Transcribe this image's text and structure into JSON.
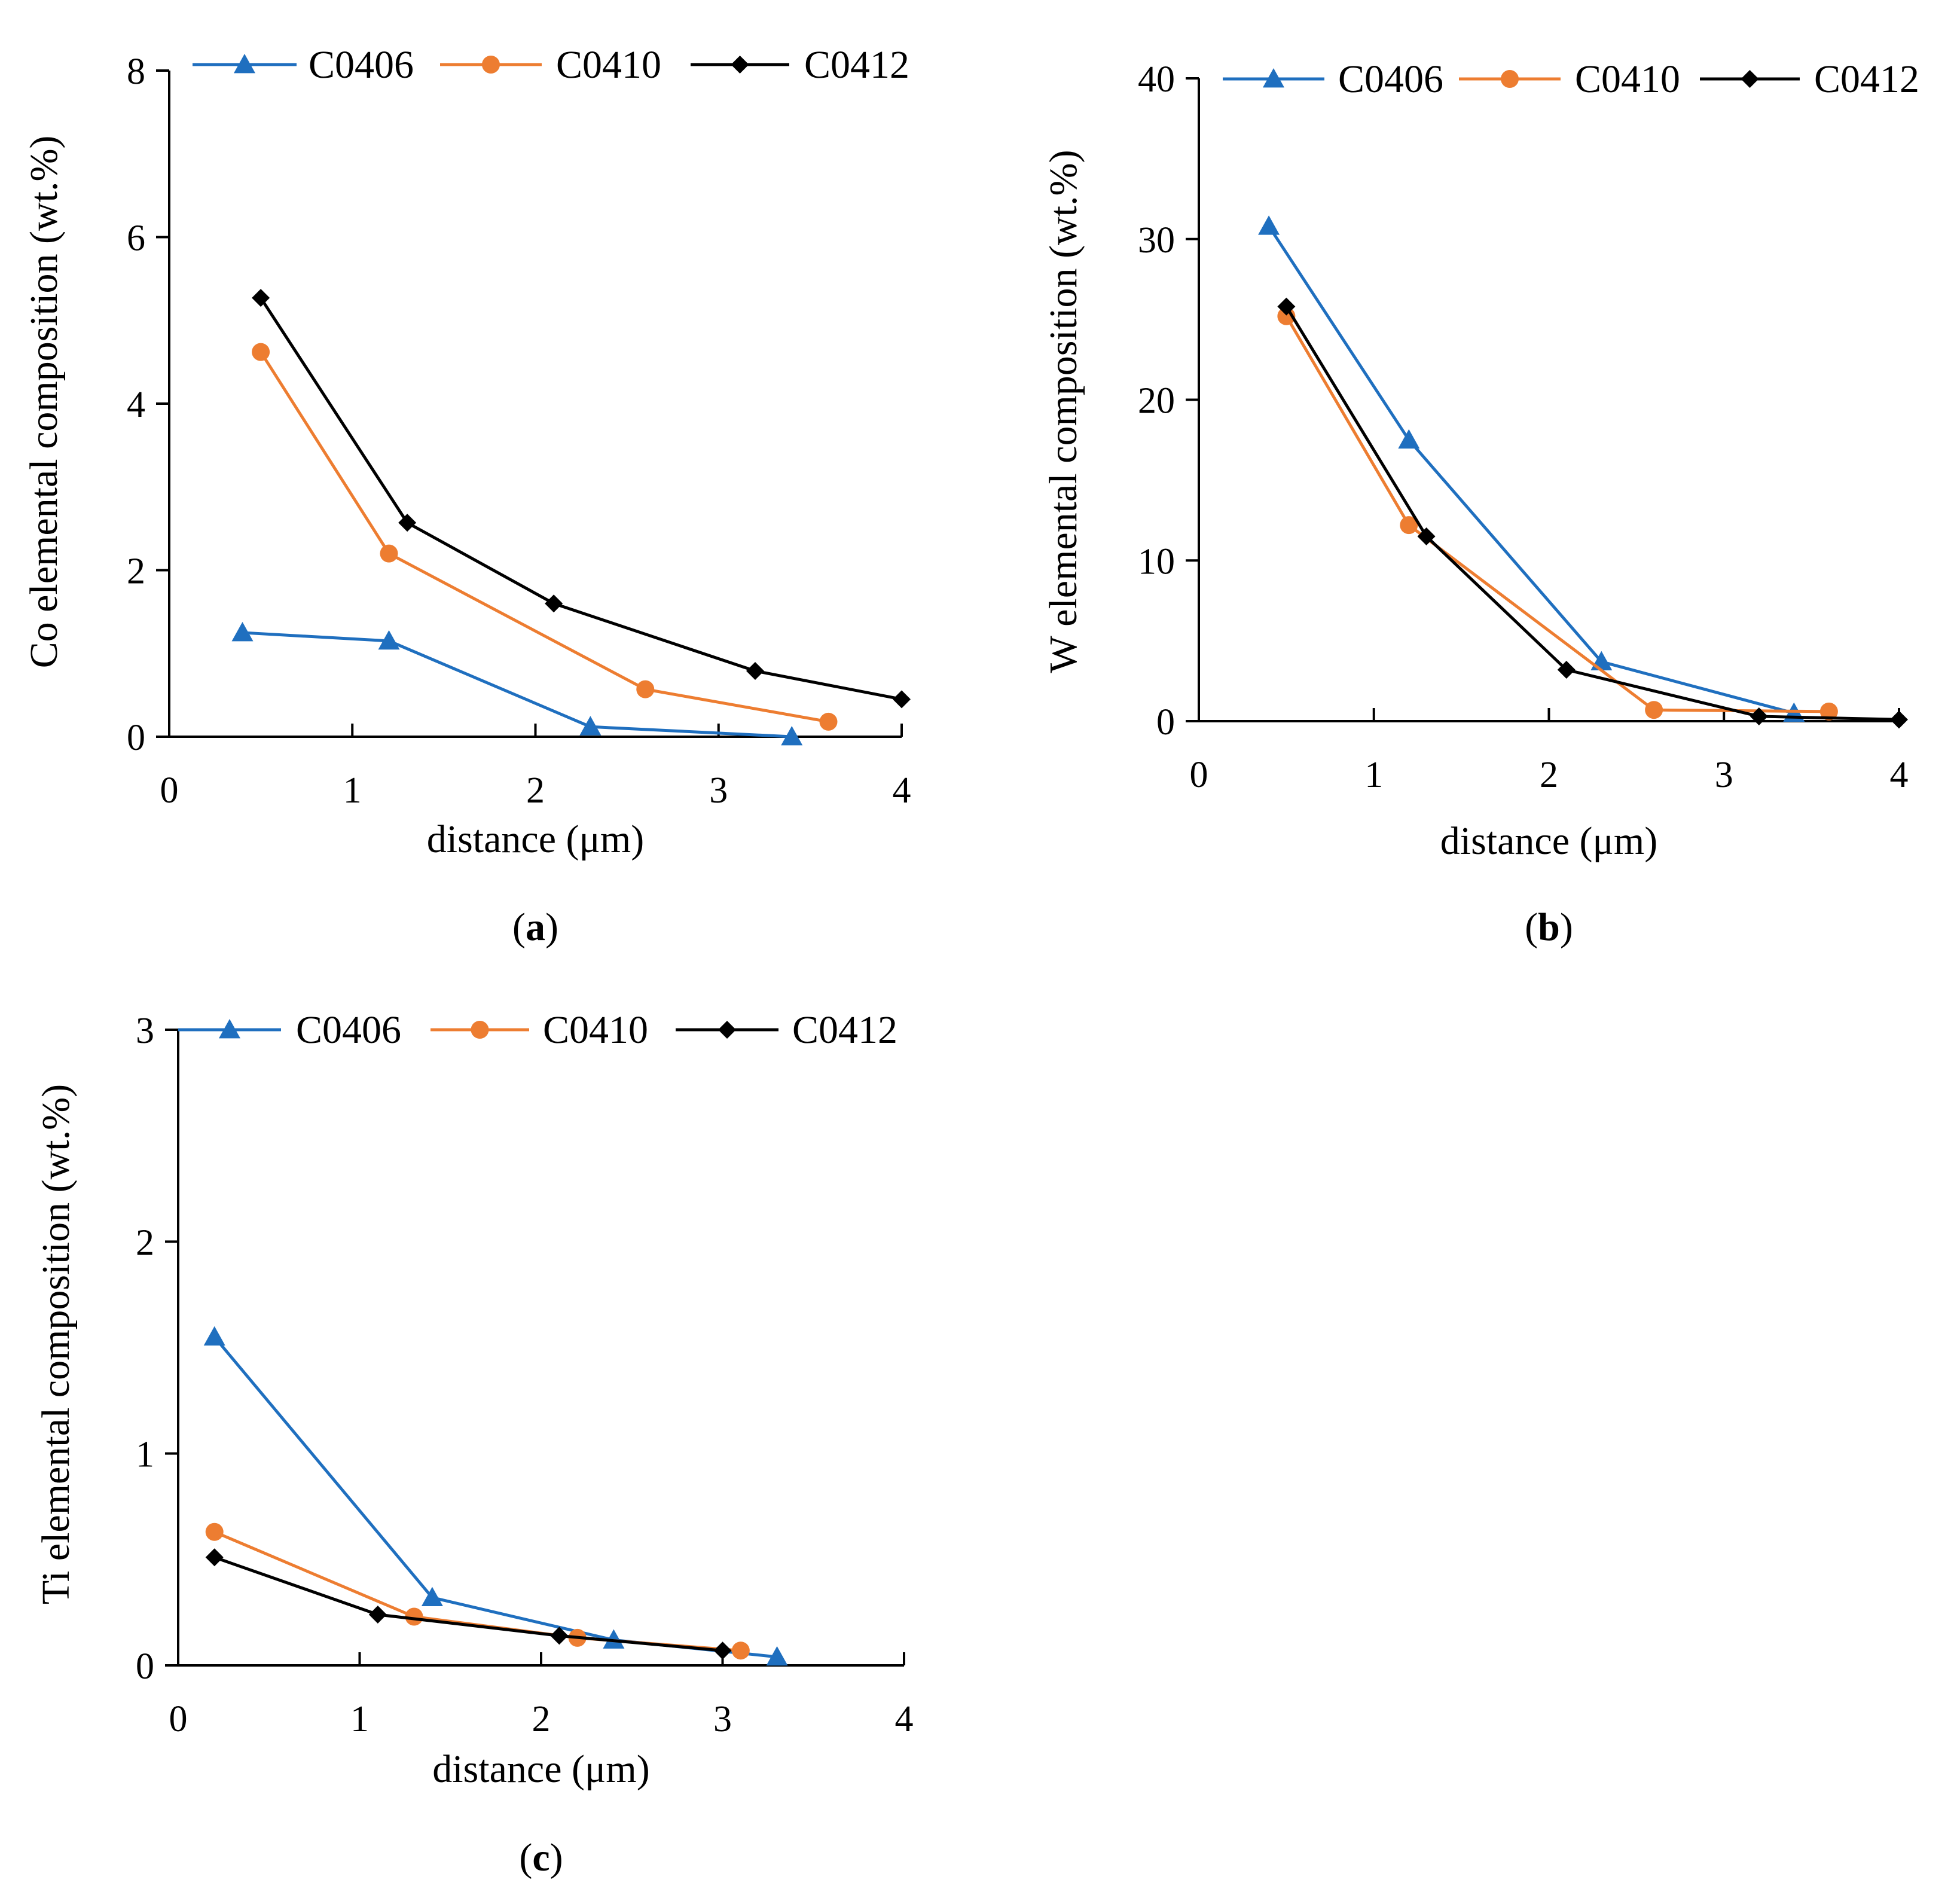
{
  "colors": {
    "C0406": "#1f6fbf",
    "C0410": "#ed7d31",
    "C0412": "#000000"
  },
  "markers": {
    "C0406": "triangle",
    "C0410": "circle",
    "C0412": "diamond"
  },
  "chart_data": [
    {
      "id": "a",
      "type": "line",
      "panel_label": "a",
      "xlabel": "distance (μm)",
      "ylabel": "Co elemental composition (wt.%)",
      "xlim": [
        0,
        4
      ],
      "ylim": [
        0,
        8
      ],
      "xticks": [
        0,
        1,
        2,
        3,
        4
      ],
      "yticks": [
        0,
        2,
        4,
        6,
        8
      ],
      "grid": false,
      "legend": "top",
      "series": [
        {
          "name": "C0406",
          "x": [
            0.4,
            1.2,
            2.3,
            3.4
          ],
          "y": [
            1.25,
            1.15,
            0.12,
            0.0
          ]
        },
        {
          "name": "C0410",
          "x": [
            0.5,
            1.2,
            2.6,
            3.6
          ],
          "y": [
            4.62,
            2.2,
            0.57,
            0.18
          ]
        },
        {
          "name": "C0412",
          "x": [
            0.5,
            1.3,
            2.1,
            3.2,
            4.0
          ],
          "y": [
            5.27,
            2.57,
            1.6,
            0.79,
            0.45
          ]
        }
      ]
    },
    {
      "id": "b",
      "type": "line",
      "panel_label": "b",
      "xlabel": "distance (μm)",
      "ylabel": "W elemental composition (wt.%)",
      "xlim": [
        0,
        4
      ],
      "ylim": [
        0,
        40
      ],
      "xticks": [
        0,
        1,
        2,
        3,
        4
      ],
      "yticks": [
        0,
        10,
        20,
        30,
        40
      ],
      "grid": false,
      "legend": "top",
      "series": [
        {
          "name": "C0406",
          "x": [
            0.4,
            1.2,
            2.3,
            3.4
          ],
          "y": [
            30.8,
            17.5,
            3.7,
            0.5
          ]
        },
        {
          "name": "C0410",
          "x": [
            0.5,
            1.2,
            2.6,
            3.6
          ],
          "y": [
            25.2,
            12.2,
            0.7,
            0.6
          ]
        },
        {
          "name": "C0412",
          "x": [
            0.5,
            1.3,
            2.1,
            3.2,
            4.0
          ],
          "y": [
            25.8,
            11.5,
            3.2,
            0.3,
            0.1
          ]
        }
      ]
    },
    {
      "id": "c",
      "type": "line",
      "panel_label": "c",
      "xlabel": "distance (μm)",
      "ylabel": "Ti elemental composition (wt.%)",
      "xlim": [
        0,
        4
      ],
      "ylim": [
        0,
        3
      ],
      "xticks": [
        0,
        1,
        2,
        3,
        4
      ],
      "yticks": [
        0,
        1,
        2,
        3
      ],
      "grid": false,
      "legend": "top",
      "series": [
        {
          "name": "C0406",
          "x": [
            0.2,
            1.4,
            2.4,
            3.3
          ],
          "y": [
            1.55,
            0.32,
            0.12,
            0.04
          ]
        },
        {
          "name": "C0410",
          "x": [
            0.2,
            1.3,
            2.2,
            3.1
          ],
          "y": [
            0.63,
            0.23,
            0.13,
            0.07
          ]
        },
        {
          "name": "C0412",
          "x": [
            0.2,
            1.1,
            2.1,
            3.0
          ],
          "y": [
            0.51,
            0.24,
            0.14,
            0.07
          ]
        }
      ]
    }
  ]
}
